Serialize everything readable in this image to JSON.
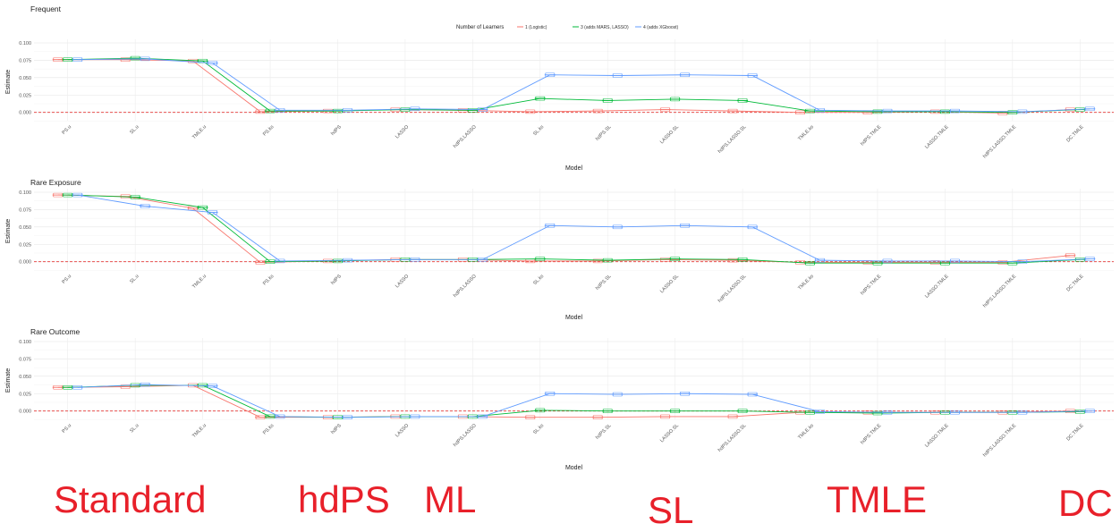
{
  "legend": {
    "title": "Number of Learners",
    "entries": [
      {
        "label": "1 (Logistic)",
        "color": "#F8766D"
      },
      {
        "label": "3 (adds MARS, LASSO)",
        "color": "#00BA38"
      },
      {
        "label": "4 (adds XGboost)",
        "color": "#619CFF"
      }
    ]
  },
  "groups": [
    {
      "label": "Standard"
    },
    {
      "label": "hdPS"
    },
    {
      "label": "ML"
    },
    {
      "label": "SL"
    },
    {
      "label": "TMLE"
    },
    {
      "label": "DC"
    }
  ],
  "chart_data": [
    {
      "type": "line",
      "title": "Frequent",
      "xlabel": "Model",
      "ylabel": "Estimate",
      "ylim": [
        -0.012,
        0.1
      ],
      "yticks": [
        "0.000",
        "0.025",
        "0.050",
        "0.075",
        "0.100"
      ],
      "reference_line": 0,
      "categories": [
        "PS.u",
        "SL.u",
        "TMLE.u",
        "PS.ks",
        "hdPS",
        "LASSO",
        "hdPS.LASSO",
        "SL.ks",
        "hdPS.SL",
        "LASSO.SL",
        "hdPS.LASSO.SL",
        "TMLE.ks",
        "hdPS.TMLE",
        "LASSO.TMLE",
        "hdPS.LASSO.TMLE",
        "DC.TMLE"
      ],
      "series": [
        {
          "name": "1 (Logistic)",
          "values": [
            0.076,
            0.076,
            0.074,
            0.001,
            0.002,
            0.004,
            0.003,
            0.001,
            0.002,
            0.004,
            0.002,
            0.0,
            0.0,
            0.001,
            -0.001,
            0.004
          ]
        },
        {
          "name": "3 (adds MARS, LASSO)",
          "values": [
            0.076,
            0.078,
            0.074,
            0.002,
            0.002,
            0.004,
            0.003,
            0.02,
            0.017,
            0.019,
            0.017,
            0.002,
            0.001,
            0.001,
            0.0,
            0.004
          ]
        },
        {
          "name": "4 (adds XGboost)",
          "values": [
            0.076,
            0.077,
            0.071,
            0.003,
            0.003,
            0.005,
            0.004,
            0.054,
            0.053,
            0.054,
            0.053,
            0.003,
            0.002,
            0.002,
            0.001,
            0.005
          ]
        }
      ]
    },
    {
      "type": "line",
      "title": "Rare Exposure",
      "xlabel": "Model",
      "ylabel": "Estimate",
      "ylim": [
        -0.012,
        0.1
      ],
      "yticks": [
        "0.000",
        "0.025",
        "0.050",
        "0.075",
        "0.100"
      ],
      "reference_line": 0,
      "categories": [
        "PS.u",
        "SL.u",
        "TMLE.u",
        "PS.ks",
        "hdPS",
        "LASSO",
        "hdPS.LASSO",
        "SL.ks",
        "hdPS.SL",
        "LASSO.SL",
        "hdPS.LASSO.SL",
        "TMLE.ks",
        "hdPS.TMLE",
        "LASSO.TMLE",
        "hdPS.LASSO.TMLE",
        "DC.TMLE"
      ],
      "series": [
        {
          "name": "1 (Logistic)",
          "values": [
            0.096,
            0.094,
            0.077,
            -0.001,
            0.001,
            0.003,
            0.003,
            0.001,
            0.001,
            0.003,
            0.002,
            -0.001,
            -0.001,
            -0.001,
            -0.001,
            0.009
          ]
        },
        {
          "name": "3 (adds MARS, LASSO)",
          "values": [
            0.096,
            0.093,
            0.078,
            0.0,
            0.001,
            0.003,
            0.003,
            0.004,
            0.002,
            0.004,
            0.003,
            -0.002,
            -0.002,
            -0.002,
            -0.002,
            0.003
          ]
        },
        {
          "name": "4 (adds XGboost)",
          "values": [
            0.096,
            0.08,
            0.071,
            0.001,
            0.002,
            0.003,
            0.003,
            0.052,
            0.05,
            0.052,
            0.05,
            0.002,
            0.001,
            0.001,
            0.0,
            0.004
          ]
        }
      ]
    },
    {
      "type": "line",
      "title": "Rare Outcome",
      "xlabel": "Model",
      "ylabel": "Estimate",
      "ylim": [
        -0.012,
        0.1
      ],
      "yticks": [
        "0.000",
        "0.025",
        "0.050",
        "0.075",
        "0.100"
      ],
      "reference_line": 0,
      "categories": [
        "PS.u",
        "SL.u",
        "TMLE.u",
        "PS.ks",
        "hdPS",
        "LASSO",
        "hdPS.LASSO",
        "SL.ks",
        "hdPS.SL",
        "LASSO.SL",
        "hdPS.LASSO.SL",
        "TMLE.ks",
        "hdPS.TMLE",
        "LASSO.TMLE",
        "hdPS.LASSO.TMLE",
        "DC.TMLE"
      ],
      "series": [
        {
          "name": "1 (Logistic)",
          "values": [
            0.034,
            0.035,
            0.037,
            -0.009,
            -0.009,
            -0.008,
            -0.008,
            -0.009,
            -0.009,
            -0.008,
            -0.008,
            -0.002,
            -0.002,
            -0.002,
            -0.002,
            0.0
          ]
        },
        {
          "name": "3 (adds MARS, LASSO)",
          "values": [
            0.034,
            0.037,
            0.037,
            -0.008,
            -0.009,
            -0.008,
            -0.008,
            0.001,
            0.0,
            0.0,
            0.0,
            -0.002,
            -0.003,
            -0.002,
            -0.002,
            -0.001
          ]
        },
        {
          "name": "4 (adds XGboost)",
          "values": [
            0.034,
            0.038,
            0.036,
            -0.008,
            -0.009,
            -0.008,
            -0.008,
            0.025,
            0.024,
            0.025,
            0.024,
            -0.001,
            -0.002,
            -0.002,
            -0.002,
            0.0
          ]
        }
      ]
    }
  ]
}
